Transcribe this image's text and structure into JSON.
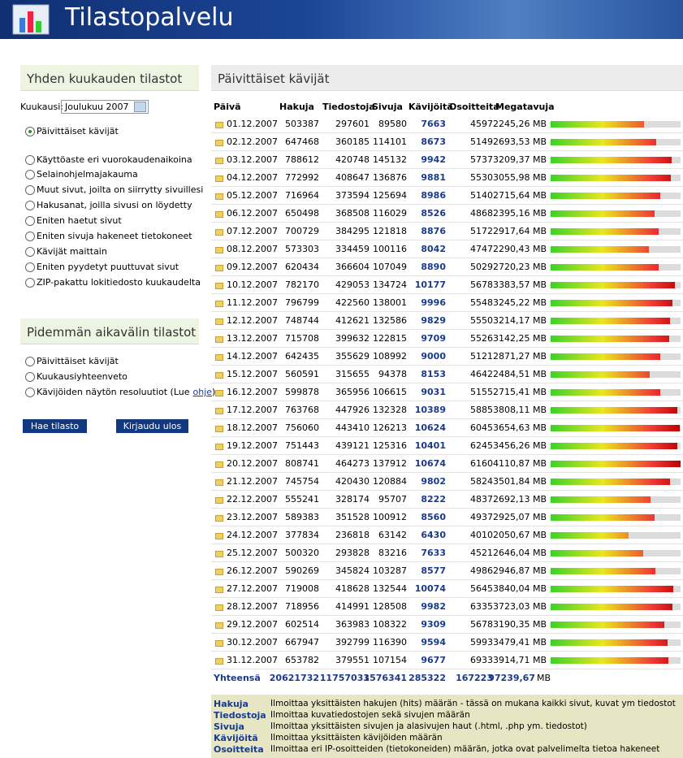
{
  "header": {
    "title": "Tilastopalvelu"
  },
  "sidebar": {
    "monthly": {
      "title": "Yhden kuukauden tilastot",
      "month_label": "Kuukausi:",
      "month_value": "Joulukuu 2007",
      "options": [
        "Päivittäiset kävijät",
        "Käyttöaste eri vuorokaudenaikoina",
        "Selainohjelmajakauma",
        "Muut sivut, joilta on siirrytty sivuillesi",
        "Hakusanat, joilla sivusi on löydetty",
        "Eniten haetut sivut",
        "Eniten sivuja hakeneet tietokoneet",
        "Kävijät maittain",
        "Eniten pyydetyt puuttuvat sivut",
        "ZIP-pakattu lokitiedosto kuukaudelta"
      ]
    },
    "longterm": {
      "title": "Pidemmän aikavälin tilastot",
      "options": [
        "Päivittäiset kävijät",
        "Kuukausiyhteenveto",
        "Kävijöiden näytön resoluutiot (Lue"
      ],
      "link": "ohje",
      "link_suffix": ")"
    },
    "buttons": [
      "Hae tilasto",
      "Kirjaudu ulos"
    ]
  },
  "main": {
    "title": "Päivittäiset kävijät",
    "columns": [
      "Päivä",
      "Hakuja",
      "Tiedostoja",
      "Sivuja",
      "Kävijöitä",
      "Osoitteita",
      "Megatavuja"
    ],
    "rows": [
      [
        "01.12.2007",
        503387,
        297601,
        89580,
        7663,
        4597,
        "2245,26 MB"
      ],
      [
        "02.12.2007",
        647468,
        360185,
        114101,
        8673,
        5149,
        "2693,53 MB"
      ],
      [
        "03.12.2007",
        788612,
        420748,
        145132,
        9942,
        5737,
        "3209,37 MB"
      ],
      [
        "04.12.2007",
        772992,
        408647,
        136876,
        9881,
        5530,
        "3055,98 MB"
      ],
      [
        "05.12.2007",
        716964,
        373594,
        125694,
        8986,
        5140,
        "2715,64 MB"
      ],
      [
        "06.12.2007",
        650498,
        368508,
        116029,
        8526,
        4868,
        "2395,16 MB"
      ],
      [
        "07.12.2007",
        700729,
        384295,
        121818,
        8876,
        5172,
        "2917,64 MB"
      ],
      [
        "08.12.2007",
        573303,
        334459,
        100116,
        8042,
        4747,
        "2290,43 MB"
      ],
      [
        "09.12.2007",
        620434,
        366604,
        107049,
        8890,
        5029,
        "2720,23 MB"
      ],
      [
        "10.12.2007",
        782170,
        429053,
        134724,
        10177,
        5678,
        "3383,57 MB"
      ],
      [
        "11.12.2007",
        796799,
        422560,
        138001,
        9996,
        5548,
        "3245,22 MB"
      ],
      [
        "12.12.2007",
        748744,
        412621,
        132586,
        9829,
        5550,
        "3214,17 MB"
      ],
      [
        "13.12.2007",
        715708,
        399632,
        122815,
        9709,
        5526,
        "3142,25 MB"
      ],
      [
        "14.12.2007",
        642435,
        355629,
        108992,
        9000,
        5121,
        "2871,27 MB"
      ],
      [
        "15.12.2007",
        560591,
        315655,
        94378,
        8153,
        4642,
        "2484,51 MB"
      ],
      [
        "16.12.2007",
        599878,
        365956,
        106615,
        9031,
        5155,
        "2715,41 MB"
      ],
      [
        "17.12.2007",
        763768,
        447926,
        132328,
        10389,
        5885,
        "3808,11 MB"
      ],
      [
        "18.12.2007",
        756060,
        443410,
        126213,
        10624,
        6045,
        "3654,63 MB"
      ],
      [
        "19.12.2007",
        751443,
        439121,
        125316,
        10401,
        6245,
        "3456,26 MB"
      ],
      [
        "20.12.2007",
        808741,
        464273,
        137912,
        10674,
        6160,
        "4110,87 MB"
      ],
      [
        "21.12.2007",
        745754,
        420430,
        120884,
        9802,
        5824,
        "3501,84 MB"
      ],
      [
        "22.12.2007",
        555241,
        328174,
        95707,
        8222,
        4837,
        "2692,13 MB"
      ],
      [
        "23.12.2007",
        589383,
        351528,
        100912,
        8560,
        4937,
        "2925,07 MB"
      ],
      [
        "24.12.2007",
        377834,
        236818,
        63142,
        6430,
        4010,
        "2050,67 MB"
      ],
      [
        "25.12.2007",
        500320,
        293828,
        83216,
        7633,
        4521,
        "2646,04 MB"
      ],
      [
        "26.12.2007",
        590269,
        345824,
        103287,
        8577,
        4986,
        "2946,87 MB"
      ],
      [
        "27.12.2007",
        719008,
        418628,
        132544,
        10074,
        5645,
        "3840,04 MB"
      ],
      [
        "28.12.2007",
        718956,
        414991,
        128508,
        9982,
        6335,
        "3723,03 MB"
      ],
      [
        "29.12.2007",
        602514,
        363983,
        108322,
        9309,
        5678,
        "3190,35 MB"
      ],
      [
        "30.12.2007",
        667947,
        392799,
        116390,
        9594,
        5993,
        "3479,41 MB"
      ],
      [
        "31.12.2007",
        653782,
        379551,
        107154,
        9677,
        6933,
        "3914,71 MB"
      ]
    ],
    "total": {
      "label": "Yhteensä",
      "values": [
        20621732,
        11757031,
        3576341,
        285322,
        167223
      ],
      "megabytes": "97239,67",
      "unit": "MB"
    },
    "legend": [
      [
        "Hakuja",
        "Ilmoittaa yksittäisten hakujen (hits) määrän - tässä on mukana kaikki sivut, kuvat ym tiedostot"
      ],
      [
        "Tiedostoja",
        "Ilmoittaa kuvatiedostojen sekä sivujen määrän"
      ],
      [
        "Sivuja",
        "Ilmoittaa yksittäisten sivujen ja alasivujen haut (.html, .php ym. tiedostot)"
      ],
      [
        "Kävijöitä",
        "Ilmoittaa yksittäisten kävijöiden määrän"
      ],
      [
        "Osoitteita",
        "Ilmoittaa eri IP-osoitteiden (tietokoneiden) määrän, jotka ovat palvelimelta tietoa hakeneet"
      ]
    ]
  }
}
